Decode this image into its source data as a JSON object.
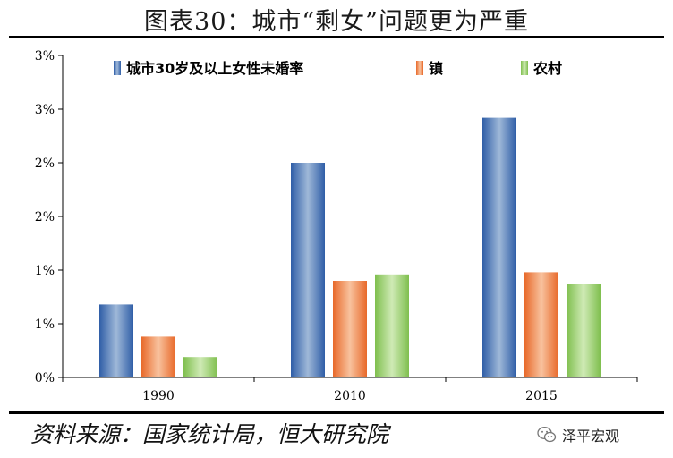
{
  "title": "图表30：城市“剩女”问题更为严重",
  "source": "资料来源：国家统计局，恒大研究院",
  "brand": "泽平宏观",
  "brand_icon": "wechat-icon",
  "chart_data": {
    "type": "bar",
    "categories": [
      "1990",
      "2010",
      "2015"
    ],
    "y_tick_labels": [
      "0%",
      "1%",
      "1%",
      "2%",
      "2%",
      "3%",
      "3%"
    ],
    "ylim": [
      0,
      3.0
    ],
    "grid": false,
    "legend_position": "top",
    "series": [
      {
        "name": "城市30岁及以上女性未婚率",
        "values": [
          0.68,
          2.0,
          2.42
        ],
        "color": "#4a7ab8"
      },
      {
        "name": "镇",
        "values": [
          0.38,
          0.9,
          0.98
        ],
        "color": "#f0884a"
      },
      {
        "name": "农村",
        "values": [
          0.19,
          0.96,
          0.87
        ],
        "color": "#93cc6a"
      }
    ]
  }
}
